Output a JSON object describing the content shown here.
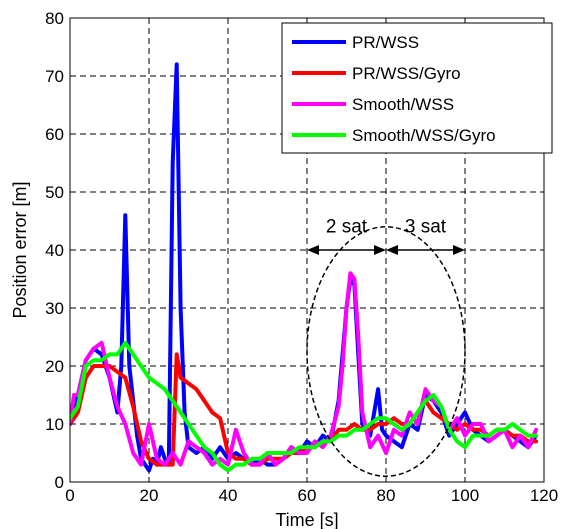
{
  "chart_data": {
    "type": "line",
    "xlabel": "Time [s]",
    "ylabel": "Position error [m]",
    "xlim": [
      0,
      120
    ],
    "ylim": [
      0,
      80
    ],
    "xticks": [
      0,
      20,
      40,
      60,
      80,
      100,
      120
    ],
    "yticks": [
      0,
      10,
      20,
      30,
      40,
      50,
      60,
      70,
      80
    ],
    "grid": true,
    "legend_position": "top-right",
    "series": [
      {
        "name": "PR/WSS",
        "color": "#0000ff",
        "x": [
          0,
          2,
          4,
          6,
          8,
          10,
          12,
          13,
          14,
          15,
          16,
          17,
          18,
          19,
          20,
          21,
          22,
          23,
          24,
          25,
          26,
          27,
          28,
          29,
          30,
          32,
          34,
          36,
          38,
          40,
          42,
          44,
          46,
          48,
          50,
          52,
          54,
          56,
          58,
          60,
          62,
          64,
          66,
          68,
          70,
          71,
          72,
          73,
          74,
          76,
          77,
          78,
          79,
          80,
          82,
          84,
          86,
          88,
          90,
          92,
          94,
          96,
          98,
          100,
          102,
          104,
          106,
          108,
          110,
          112,
          114,
          116,
          118
        ],
        "y": [
          10,
          15,
          21,
          23,
          22,
          18,
          12,
          20,
          46,
          20,
          14,
          8,
          4,
          3,
          2,
          4,
          3,
          6,
          4,
          3,
          55,
          72,
          30,
          12,
          6,
          5,
          6,
          4,
          6,
          4,
          5,
          4,
          3,
          4,
          3,
          3,
          4,
          6,
          5,
          7,
          6,
          8,
          7,
          14,
          30,
          35,
          34,
          22,
          10,
          8,
          12,
          16,
          9,
          8,
          7,
          6,
          10,
          9,
          15,
          14,
          12,
          8,
          10,
          12,
          9,
          8,
          7,
          8,
          9,
          8,
          7,
          6,
          8
        ]
      },
      {
        "name": "PR/WSS/Gyro",
        "color": "#ff0000",
        "x": [
          0,
          2,
          4,
          6,
          8,
          10,
          12,
          14,
          16,
          18,
          20,
          22,
          24,
          26,
          27,
          28,
          30,
          32,
          34,
          36,
          38,
          40,
          42,
          44,
          46,
          48,
          50,
          52,
          54,
          56,
          58,
          60,
          62,
          64,
          66,
          68,
          70,
          72,
          74,
          76,
          78,
          80,
          82,
          84,
          86,
          88,
          90,
          92,
          94,
          96,
          98,
          100,
          102,
          104,
          106,
          108,
          110,
          112,
          114,
          116,
          118
        ],
        "y": [
          10,
          12,
          18,
          20,
          20,
          20,
          19,
          18,
          13,
          7,
          4,
          3,
          3,
          3,
          22,
          18,
          17,
          16,
          14,
          12,
          11,
          5,
          4,
          4,
          3,
          3,
          4,
          4,
          4,
          5,
          5,
          6,
          6,
          7,
          7,
          9,
          9,
          10,
          9,
          9,
          10,
          10,
          11,
          10,
          10,
          12,
          14,
          12,
          11,
          10,
          9,
          10,
          9,
          9,
          8,
          9,
          9,
          8,
          8,
          7,
          7
        ]
      },
      {
        "name": "Smooth/WSS",
        "color": "#ff00ff",
        "x": [
          0,
          1,
          2,
          4,
          6,
          8,
          10,
          12,
          14,
          16,
          18,
          20,
          22,
          24,
          26,
          28,
          30,
          32,
          34,
          36,
          38,
          40,
          42,
          44,
          46,
          48,
          50,
          52,
          54,
          56,
          58,
          60,
          62,
          64,
          66,
          68,
          69,
          70,
          71,
          72,
          73,
          74,
          76,
          78,
          80,
          82,
          84,
          86,
          88,
          90,
          92,
          94,
          96,
          98,
          100,
          102,
          104,
          106,
          108,
          110,
          112,
          114,
          116,
          118
        ],
        "y": [
          10,
          15,
          15,
          21,
          23,
          24,
          18,
          13,
          10,
          5,
          3,
          10,
          4,
          3,
          5,
          3,
          7,
          6,
          5,
          3,
          4,
          3,
          9,
          5,
          3,
          3,
          5,
          3,
          4,
          6,
          5,
          5,
          7,
          6,
          8,
          13,
          20,
          30,
          36,
          35,
          25,
          12,
          6,
          8,
          5,
          9,
          8,
          12,
          10,
          16,
          14,
          13,
          9,
          11,
          8,
          10,
          10,
          7,
          8,
          9,
          6,
          8,
          6,
          9
        ]
      },
      {
        "name": "Smooth/WSS/Gyro",
        "color": "#00ff00",
        "x": [
          0,
          2,
          4,
          6,
          8,
          10,
          12,
          14,
          16,
          18,
          20,
          22,
          24,
          26,
          28,
          30,
          32,
          34,
          36,
          38,
          40,
          42,
          44,
          46,
          48,
          50,
          52,
          54,
          56,
          58,
          60,
          62,
          64,
          66,
          68,
          70,
          72,
          74,
          76,
          78,
          80,
          82,
          84,
          86,
          88,
          90,
          92,
          94,
          96,
          98,
          100,
          102,
          104,
          106,
          108,
          110,
          112,
          114,
          116,
          118
        ],
        "y": [
          11,
          13,
          20,
          21,
          21,
          22,
          22,
          24,
          22,
          20,
          18,
          17,
          16,
          14,
          12,
          10,
          8,
          6,
          5,
          3,
          2,
          3,
          3,
          4,
          4,
          5,
          5,
          5,
          5,
          6,
          6,
          6,
          7,
          7,
          8,
          8,
          9,
          9,
          10,
          11,
          11,
          10,
          9,
          10,
          12,
          14,
          15,
          13,
          9,
          7,
          6,
          8,
          8,
          8,
          9,
          9,
          10,
          9,
          8,
          8
        ]
      }
    ],
    "annotations": [
      {
        "text": "2 sat",
        "x": 70,
        "y": 43,
        "arrow_from": 60,
        "arrow_to": 80,
        "arrow_y": 40
      },
      {
        "text": "3 sat",
        "x": 90,
        "y": 43,
        "arrow_from": 80,
        "arrow_to": 100,
        "arrow_y": 40
      }
    ],
    "ellipse": {
      "cx": 80,
      "cy": 22.5,
      "rx": 20,
      "ry": 21.5,
      "style": "dashed"
    }
  }
}
